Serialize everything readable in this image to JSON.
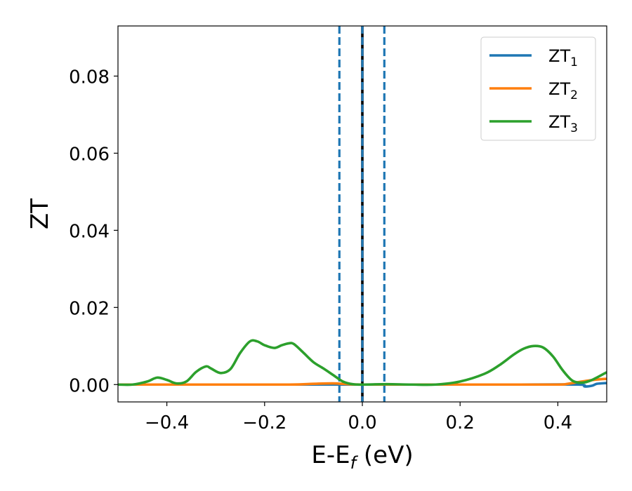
{
  "chart_data": {
    "type": "line",
    "xlabel": "E-E",
    "xlabel_sub": "f",
    "xlabel_unit": " (eV)",
    "ylabel": "ZT",
    "xlim": [
      -0.5,
      0.5
    ],
    "ylim": [
      -0.0045,
      0.093
    ],
    "xticks": [
      -0.4,
      -0.2,
      0.0,
      0.2,
      0.4
    ],
    "xtick_labels": [
      "−0.4",
      "−0.2",
      "0.0",
      "0.2",
      "0.4"
    ],
    "yticks": [
      0.0,
      0.02,
      0.04,
      0.06,
      0.08
    ],
    "ytick_labels": [
      "0.00",
      "0.02",
      "0.04",
      "0.06",
      "0.08"
    ],
    "grid": false,
    "legend_position": "top-right",
    "vertical_lines": [
      {
        "x": -0.047,
        "style": "dashed",
        "color": "#1f77b4"
      },
      {
        "x": 0.0,
        "style": "solid",
        "color": "#000000"
      },
      {
        "x": 0.0,
        "style": "dashed",
        "color": "#1f77b4"
      },
      {
        "x": 0.045,
        "style": "dashed",
        "color": "#1f77b4"
      }
    ],
    "series": [
      {
        "base": "ZT",
        "sub": "1",
        "color": "#1f77b4",
        "x": [
          -0.5,
          -0.3,
          -0.1,
          0.0,
          0.1,
          0.3,
          0.44,
          0.455,
          0.47,
          0.48,
          0.5
        ],
        "y": [
          0.0,
          0.0,
          0.0,
          0.0,
          0.0,
          0.0,
          0.0,
          -0.0005,
          -0.0003,
          0.0002,
          0.0004
        ]
      },
      {
        "base": "ZT",
        "sub": "2",
        "color": "#ff7f0e",
        "x": [
          -0.5,
          -0.3,
          -0.15,
          -0.1,
          -0.06,
          -0.03,
          0.0,
          0.1,
          0.3,
          0.4,
          0.42,
          0.44,
          0.46,
          0.48,
          0.5
        ],
        "y": [
          0.0,
          0.0,
          0.0,
          0.0002,
          0.0003,
          0.0001,
          0.0,
          0.0,
          0.0,
          0.0,
          0.0002,
          0.0006,
          0.001,
          0.0013,
          0.0015
        ]
      },
      {
        "base": "ZT",
        "sub": "3",
        "color": "#2ca02c",
        "x": [
          -0.5,
          -0.47,
          -0.44,
          -0.42,
          -0.4,
          -0.38,
          -0.36,
          -0.34,
          -0.32,
          -0.31,
          -0.29,
          -0.27,
          -0.25,
          -0.23,
          -0.215,
          -0.2,
          -0.18,
          -0.165,
          -0.15,
          -0.14,
          -0.12,
          -0.1,
          -0.08,
          -0.06,
          -0.04,
          -0.02,
          0.0,
          0.05,
          0.1,
          0.15,
          0.2,
          0.25,
          0.28,
          0.31,
          0.33,
          0.35,
          0.37,
          0.39,
          0.41,
          0.43,
          0.45,
          0.47,
          0.5
        ],
        "y": [
          0.0,
          0.0,
          0.0008,
          0.0018,
          0.0012,
          0.0003,
          0.0008,
          0.0033,
          0.0047,
          0.0042,
          0.003,
          0.004,
          0.0082,
          0.0112,
          0.0112,
          0.0102,
          0.0095,
          0.0102,
          0.0107,
          0.0105,
          0.0082,
          0.0058,
          0.0042,
          0.0025,
          0.0008,
          0.0001,
          0.0,
          0.0001,
          0.0,
          0.0,
          0.0008,
          0.0028,
          0.005,
          0.0078,
          0.0093,
          0.01,
          0.0096,
          0.0073,
          0.0037,
          0.001,
          0.0005,
          0.0012,
          0.0032
        ]
      }
    ]
  }
}
